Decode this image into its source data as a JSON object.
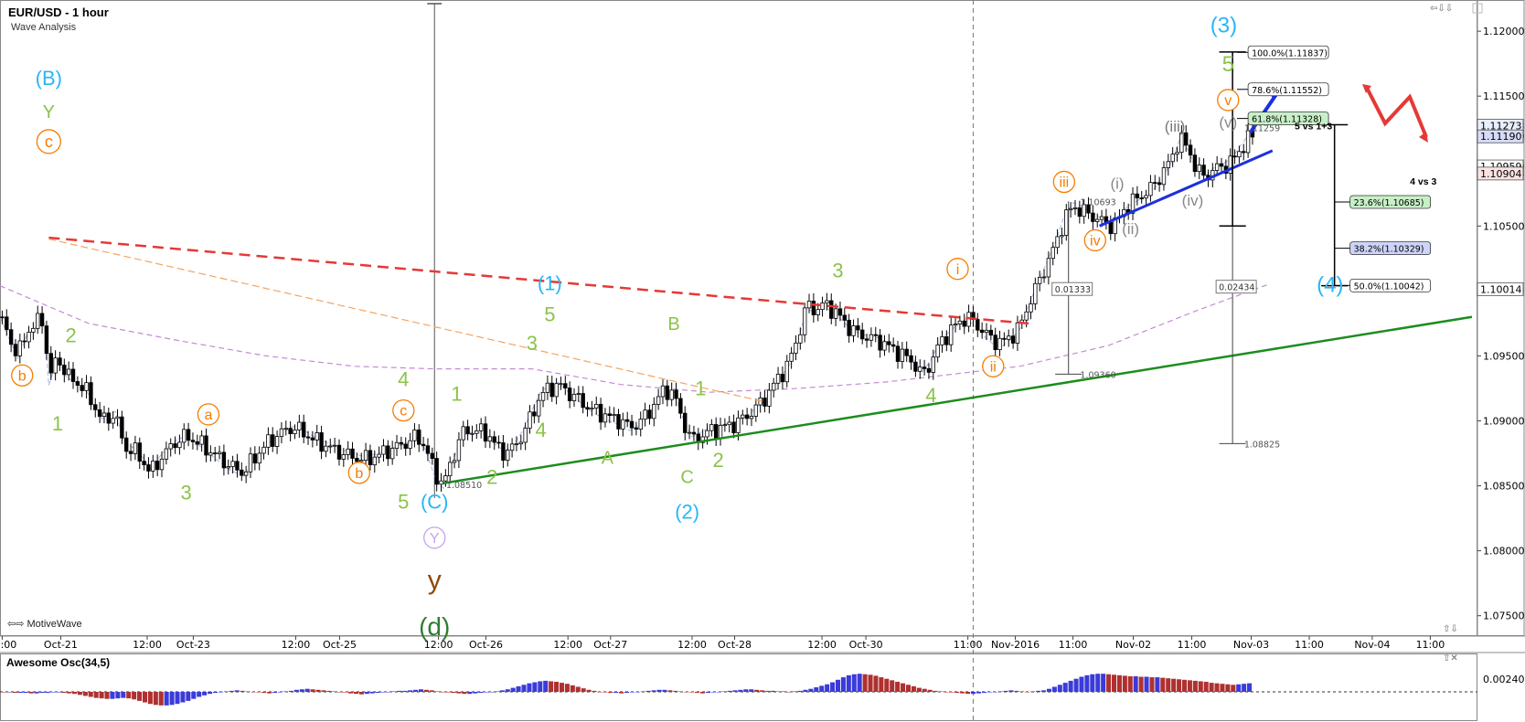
{
  "header": {
    "title": "EUR/USD - 1 hour",
    "subtitle": "Wave Analysis"
  },
  "watermark": "⇦⇨ MotiveWave",
  "oscillator": {
    "title": "Awesome Osc(34,5)",
    "axis_label": "0.00240",
    "bars": [
      -1,
      -1,
      -2,
      -2,
      -2,
      -3,
      -3,
      -2,
      -2,
      -1,
      -1,
      -2,
      -3,
      -4,
      -6,
      -8,
      -10,
      -12,
      -13,
      -14,
      -14,
      -13,
      -12,
      -13,
      -15,
      -18,
      -21,
      -24,
      -26,
      -27,
      -27,
      -26,
      -24,
      -21,
      -18,
      -14,
      -10,
      -7,
      -4,
      -2,
      -1,
      1,
      2,
      3,
      2,
      1,
      0,
      -1,
      -2,
      -3,
      -2,
      -1,
      1,
      2,
      4,
      5,
      6,
      5,
      4,
      3,
      2,
      1,
      0,
      -1,
      -3,
      -4,
      -5,
      -4,
      -3,
      -2,
      -1,
      0,
      1,
      2,
      2,
      3,
      4,
      5,
      4,
      3,
      1,
      0,
      -1,
      -2,
      -3,
      -4,
      -4,
      -3,
      -2,
      -1,
      0,
      1,
      3,
      5,
      8,
      11,
      14,
      17,
      19,
      21,
      22,
      21,
      20,
      18,
      16,
      13,
      10,
      7,
      4,
      2,
      0,
      -1,
      -2,
      -2,
      -3,
      -2,
      -1,
      0,
      1,
      2,
      3,
      4,
      4,
      3,
      2,
      1,
      0,
      -1,
      -2,
      -3,
      -2,
      -1,
      0,
      1,
      2,
      3,
      4,
      5,
      5,
      4,
      3,
      2,
      2,
      1,
      1,
      0,
      1,
      2,
      4,
      6,
      9,
      12,
      15,
      19,
      24,
      29,
      33,
      35,
      36,
      35,
      34,
      32,
      29,
      26,
      23,
      20,
      17,
      14,
      11,
      8,
      6,
      4,
      2,
      1,
      0,
      -1,
      -2,
      -3,
      -4,
      -4,
      -3,
      -2,
      -1,
      0,
      1,
      2,
      3,
      2,
      1,
      0,
      1,
      2,
      3,
      6,
      10,
      14,
      18,
      22,
      26,
      30,
      33,
      35,
      36,
      36,
      35,
      34,
      33,
      32,
      31,
      31,
      30,
      30,
      29,
      29,
      28,
      27,
      26,
      25,
      24,
      23,
      22,
      21,
      20,
      18,
      17,
      16,
      15,
      14,
      15,
      16,
      17
    ],
    "colors": {
      "up": "#3b3bd9",
      "down": "#b03030"
    }
  },
  "chart_data": {
    "type": "candlestick",
    "title": "EUR/USD - 1 hour",
    "subtitle": "Wave Analysis",
    "price_axis": [
      "1.12000",
      "1.11500",
      "1.11273",
      "1.11190",
      "1.10959",
      "1.10904",
      "1.10500",
      "1.10014",
      "1.09500",
      "1.09000",
      "1.08500",
      "1.08000",
      "1.07500"
    ],
    "ylim": [
      1.0735,
      1.1224
    ],
    "time_axis": [
      "12:00",
      "Oct-21",
      "12:00",
      "Oct-23",
      "12:00",
      "Oct-25",
      "12:00",
      "Oct-26",
      "12:00",
      "Oct-27",
      "12:00",
      "Oct-28",
      "12:00",
      "Oct-30",
      "11:00",
      "Nov-2016",
      "11:00",
      "Nov-02",
      "11:00",
      "Nov-03",
      "11:00",
      "Nov-04",
      "11:00"
    ],
    "time_ticks": [
      0.5,
      13.7,
      33.2,
      43.6,
      66.7,
      76.6,
      98.9,
      109.6,
      128.1,
      137.7,
      156.1,
      165.7,
      185.4,
      195.3,
      218.3,
      229.0,
      242.0,
      255.6,
      268.8,
      282.2,
      295.3,
      309.5,
      322.6
    ],
    "x_max": 332,
    "price_path": [
      [
        0,
        1.098
      ],
      [
        2,
        1.0965
      ],
      [
        4,
        1.095
      ],
      [
        6,
        1.0968
      ],
      [
        8,
        1.0975
      ],
      [
        10,
        1.0978
      ],
      [
        11,
        1.093
      ],
      [
        13,
        1.095
      ],
      [
        15,
        1.0935
      ],
      [
        18,
        1.0928
      ],
      [
        20,
        1.092
      ],
      [
        23,
        1.09
      ],
      [
        26,
        1.0905
      ],
      [
        28,
        1.088
      ],
      [
        31,
        1.0875
      ],
      [
        34,
        1.086
      ],
      [
        36,
        1.087
      ],
      [
        38,
        1.0878
      ],
      [
        40,
        1.0885
      ],
      [
        42,
        1.0888
      ],
      [
        44,
        1.0885
      ],
      [
        46,
        1.088
      ],
      [
        48,
        1.0875
      ],
      [
        50,
        1.087
      ],
      [
        52,
        1.0865
      ],
      [
        55,
        1.086
      ],
      [
        57,
        1.087
      ],
      [
        60,
        1.0882
      ],
      [
        63,
        1.089
      ],
      [
        66,
        1.0895
      ],
      [
        68,
        1.0892
      ],
      [
        71,
        1.0885
      ],
      [
        74,
        1.088
      ],
      [
        77,
        1.0875
      ],
      [
        80,
        1.0872
      ],
      [
        82,
        1.087
      ],
      [
        85,
        1.0873
      ],
      [
        88,
        1.0878
      ],
      [
        91,
        1.0882
      ],
      [
        94,
        1.0888
      ],
      [
        96,
        1.088
      ],
      [
        98,
        1.086
      ],
      [
        100,
        1.0851
      ],
      [
        102,
        1.087
      ],
      [
        104,
        1.089
      ],
      [
        106,
        1.0893
      ],
      [
        108,
        1.0892
      ],
      [
        110,
        1.089
      ],
      [
        112,
        1.088
      ],
      [
        114,
        1.0875
      ],
      [
        116,
        1.088
      ],
      [
        118,
        1.089
      ],
      [
        120,
        1.0905
      ],
      [
        122,
        1.092
      ],
      [
        124,
        1.0925
      ],
      [
        126,
        1.0928
      ],
      [
        128,
        1.0922
      ],
      [
        130,
        1.0918
      ],
      [
        132,
        1.0912
      ],
      [
        134,
        1.0908
      ],
      [
        136,
        1.0905
      ],
      [
        138,
        1.0902
      ],
      [
        140,
        1.09
      ],
      [
        142,
        1.0895
      ],
      [
        144,
        1.0898
      ],
      [
        146,
        1.0905
      ],
      [
        148,
        1.0915
      ],
      [
        150,
        1.0925
      ],
      [
        152,
        1.092
      ],
      [
        154,
        1.09
      ],
      [
        156,
        1.0885
      ],
      [
        158,
        1.0888
      ],
      [
        160,
        1.0892
      ],
      [
        163,
        1.0895
      ],
      [
        166,
        1.0898
      ],
      [
        169,
        1.0905
      ],
      [
        172,
        1.0915
      ],
      [
        175,
        1.093
      ],
      [
        178,
        1.0945
      ],
      [
        180,
        1.0965
      ],
      [
        182,
        1.099
      ],
      [
        184,
        1.0985
      ],
      [
        186,
        1.099
      ],
      [
        188,
        1.0985
      ],
      [
        190,
        1.0978
      ],
      [
        192,
        1.097
      ],
      [
        195,
        1.0965
      ],
      [
        198,
        1.0962
      ],
      [
        200,
        1.0958
      ],
      [
        203,
        1.0952
      ],
      [
        206,
        1.0945
      ],
      [
        208,
        1.0935
      ],
      [
        210,
        1.0945
      ],
      [
        212,
        1.096
      ],
      [
        214,
        1.0968
      ],
      [
        216,
        1.0975
      ],
      [
        218,
        1.098
      ],
      [
        220,
        1.0975
      ],
      [
        222,
        1.0968
      ],
      [
        224,
        1.0962
      ],
      [
        226,
        1.096
      ],
      [
        228,
        1.0965
      ],
      [
        230,
        1.0972
      ],
      [
        232,
        1.099
      ],
      [
        234,
        1.1005
      ],
      [
        236,
        1.102
      ],
      [
        238,
        1.1035
      ],
      [
        240,
        1.1055
      ],
      [
        242,
        1.1065
      ],
      [
        244,
        1.1062
      ],
      [
        246,
        1.1058
      ],
      [
        248,
        1.1055
      ],
      [
        250,
        1.105
      ],
      [
        252,
        1.1053
      ],
      [
        254,
        1.1065
      ],
      [
        256,
        1.107
      ],
      [
        258,
        1.1075
      ],
      [
        260,
        1.108
      ],
      [
        262,
        1.109
      ],
      [
        264,
        1.11
      ],
      [
        266,
        1.1118
      ],
      [
        268,
        1.111
      ],
      [
        270,
        1.1092
      ],
      [
        272,
        1.1088
      ],
      [
        274,
        1.1094
      ],
      [
        276,
        1.1096
      ],
      [
        278,
        1.11
      ],
      [
        280,
        1.111
      ],
      [
        282,
        1.1119
      ]
    ],
    "wave_labels": [
      {
        "text": "(B)",
        "x": 11,
        "p": 1.1164,
        "color": "#29b6f6",
        "size": 22
      },
      {
        "text": "Y",
        "x": 11,
        "p": 1.1138,
        "color": "#8bc34a",
        "size": 20
      },
      {
        "text": "c",
        "x": 11,
        "p": 1.1115,
        "color": "#f57c00",
        "size": 18,
        "circle": true
      },
      {
        "text": "b",
        "x": 5,
        "p": 1.0935,
        "color": "#f57c00",
        "size": 16,
        "circle": true
      },
      {
        "text": "2",
        "x": 16,
        "p": 1.0966,
        "color": "#8bc34a",
        "size": 22
      },
      {
        "text": "1",
        "x": 13,
        "p": 1.0898,
        "color": "#8bc34a",
        "size": 22
      },
      {
        "text": "a",
        "x": 47,
        "p": 1.0905,
        "color": "#f57c00",
        "size": 16,
        "circle": true
      },
      {
        "text": "3",
        "x": 42,
        "p": 1.0845,
        "color": "#8bc34a",
        "size": 22
      },
      {
        "text": "b",
        "x": 81,
        "p": 1.086,
        "color": "#f57c00",
        "size": 16,
        "circle": true
      },
      {
        "text": "c",
        "x": 91,
        "p": 1.0908,
        "color": "#f57c00",
        "size": 16,
        "circle": true
      },
      {
        "text": "4",
        "x": 91,
        "p": 1.0932,
        "color": "#8bc34a",
        "size": 22
      },
      {
        "text": "5",
        "x": 91,
        "p": 1.0838,
        "color": "#8bc34a",
        "size": 22
      },
      {
        "text": "(C)",
        "x": 98,
        "p": 1.0838,
        "color": "#29b6f6",
        "size": 22
      },
      {
        "text": "Y",
        "x": 98,
        "p": 1.081,
        "color": "#c5a3f0",
        "size": 16,
        "circle": true
      },
      {
        "text": "y",
        "x": 98,
        "p": 1.0778,
        "color": "#8d4a0a",
        "size": 30
      },
      {
        "text": "(d)",
        "x": 98,
        "p": 1.0742,
        "color": "#2e7d32",
        "size": 28
      },
      {
        "text": "1",
        "x": 103,
        "p": 1.0921,
        "color": "#8bc34a",
        "size": 22
      },
      {
        "text": "2",
        "x": 111,
        "p": 1.0857,
        "color": "#8bc34a",
        "size": 22
      },
      {
        "text": "3",
        "x": 120,
        "p": 1.096,
        "color": "#8bc34a",
        "size": 22
      },
      {
        "text": "4",
        "x": 122,
        "p": 1.0893,
        "color": "#8bc34a",
        "size": 22
      },
      {
        "text": "5",
        "x": 124,
        "p": 1.0982,
        "color": "#8bc34a",
        "size": 22
      },
      {
        "text": "(1)",
        "x": 124,
        "p": 1.1006,
        "color": "#29b6f6",
        "size": 22
      },
      {
        "text": "A",
        "x": 137,
        "p": 1.0872,
        "color": "#8bc34a",
        "size": 20
      },
      {
        "text": "B",
        "x": 152,
        "p": 1.0975,
        "color": "#8bc34a",
        "size": 20
      },
      {
        "text": "1",
        "x": 158,
        "p": 1.0925,
        "color": "#8bc34a",
        "size": 22
      },
      {
        "text": "C",
        "x": 155,
        "p": 1.0857,
        "color": "#8bc34a",
        "size": 20
      },
      {
        "text": "2",
        "x": 162,
        "p": 1.087,
        "color": "#8bc34a",
        "size": 22
      },
      {
        "text": "(2)",
        "x": 155,
        "p": 1.083,
        "color": "#29b6f6",
        "size": 22
      },
      {
        "text": "3",
        "x": 189,
        "p": 1.1016,
        "color": "#8bc34a",
        "size": 22
      },
      {
        "text": "4",
        "x": 210,
        "p": 1.092,
        "color": "#8bc34a",
        "size": 22
      },
      {
        "text": "i",
        "x": 216,
        "p": 1.1017,
        "color": "#f57c00",
        "size": 16,
        "circle": true
      },
      {
        "text": "ii",
        "x": 224,
        "p": 1.0942,
        "color": "#f57c00",
        "size": 16,
        "circle": true
      },
      {
        "text": "iii",
        "x": 240,
        "p": 1.1084,
        "color": "#f57c00",
        "size": 16,
        "circle": true
      },
      {
        "text": "iv",
        "x": 247,
        "p": 1.1039,
        "color": "#f57c00",
        "size": 16,
        "circle": true
      },
      {
        "text": "(i)",
        "x": 252,
        "p": 1.1083,
        "color": "#888",
        "size": 17
      },
      {
        "text": "(ii)",
        "x": 255,
        "p": 1.1048,
        "color": "#888",
        "size": 17
      },
      {
        "text": "(iii)",
        "x": 265,
        "p": 1.1127,
        "color": "#777",
        "size": 17
      },
      {
        "text": "(iv)",
        "x": 269,
        "p": 1.107,
        "color": "#888",
        "size": 17
      },
      {
        "text": "(v)",
        "x": 277,
        "p": 1.113,
        "color": "#888",
        "size": 17
      },
      {
        "text": "v",
        "x": 277,
        "p": 1.1147,
        "color": "#f57c00",
        "size": 16,
        "circle": true
      },
      {
        "text": "5",
        "x": 277,
        "p": 1.1175,
        "color": "#8bc34a",
        "size": 24
      },
      {
        "text": "(3)",
        "x": 276,
        "p": 1.1205,
        "color": "#29b6f6",
        "size": 24
      },
      {
        "text": "(4)",
        "x": 300,
        "p": 1.1005,
        "color": "#29b6f6",
        "size": 24
      }
    ],
    "fib_left_boxes": [
      {
        "text": "100.0%(1.11837)",
        "p": 1.11837,
        "fill": "#ffffff"
      },
      {
        "text": "78.6%(1.11552)",
        "p": 1.11552,
        "fill": "#ffffff"
      },
      {
        "text": "61.8%(1.11328)",
        "p": 1.11328,
        "fill": "#c8f0c8"
      }
    ],
    "fib_right_boxes": [
      {
        "text": "23.6%(1.10685)",
        "p": 1.10685,
        "fill": "#c8f0c8"
      },
      {
        "text": "38.2%(1.10329)",
        "p": 1.10329,
        "fill": "#cdd4f7"
      },
      {
        "text": "50.0%(1.10042)",
        "p": 1.10042,
        "fill": "#ffffff"
      }
    ],
    "small_texts": [
      {
        "text": "1.08510",
        "x": 100,
        "p": 1.0851
      },
      {
        "text": "1.10693",
        "x": 243,
        "p": 1.1069
      },
      {
        "text": "1.09360",
        "x": 243,
        "p": 1.0936
      },
      {
        "text": "1.11259",
        "x": 280,
        "p": 1.1126
      },
      {
        "text": "1.08825",
        "x": 280,
        "p": 1.08825
      }
    ],
    "measure_boxes": [
      {
        "text": "0.01333",
        "x": 241,
        "p": 1.10015
      },
      {
        "text": "0.02434",
        "x": 278,
        "p": 1.10033
      }
    ],
    "notes": [
      {
        "text": "5 vs 1+3",
        "x": 292,
        "p": 1.11245
      },
      {
        "text": "4 vs 3",
        "x": 318,
        "p": 1.1082
      }
    ],
    "price_badges": [
      {
        "text": "1.11273",
        "p": 1.11273,
        "fill": "#e8eefc"
      },
      {
        "text": "1.11190",
        "p": 1.1119,
        "fill": "#d7dcf7"
      },
      {
        "text": "1.10959",
        "p": 1.10959,
        "fill": "#ffffff"
      },
      {
        "text": "1.10904",
        "p": 1.10904,
        "fill": "#fbe3e3"
      },
      {
        "text": "1.10014",
        "p": 1.10014,
        "fill": "#ffffff"
      }
    ],
    "trendlines": [
      {
        "name": "red-resistance",
        "x1": 11,
        "p1": 1.1041,
        "x2": 232,
        "p2": 1.0975,
        "color": "#e53935",
        "width": 2.5,
        "dash": "12,7"
      },
      {
        "name": "orange-line",
        "x1": 11,
        "p1": 1.104,
        "x2": 172,
        "p2": 1.0915,
        "color": "#f4a460",
        "width": 1.2,
        "dash": "8,4"
      },
      {
        "name": "green-support",
        "x1": 100,
        "p1": 1.0852,
        "x2": 332,
        "p2": 1.098,
        "color": "#1e8c1e",
        "width": 2.5,
        "dash": ""
      },
      {
        "name": "blue-channel",
        "x1": 248,
        "p1": 1.105,
        "x2": 287,
        "p2": 1.1108,
        "color": "#1d2fe0",
        "width": 3,
        "dash": ""
      }
    ],
    "grid": false,
    "legend": "none"
  }
}
